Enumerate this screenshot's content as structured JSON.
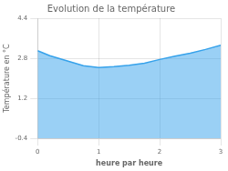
{
  "chart_data": {
    "type": "area",
    "title": "Evolution de la température",
    "x_label": "heure par heure",
    "y_label": "Température en °C",
    "x": [
      0,
      0.2,
      0.5,
      0.75,
      1.0,
      1.25,
      1.5,
      1.75,
      2.0,
      2.25,
      2.5,
      2.75,
      3.0
    ],
    "values": [
      3.1,
      2.9,
      2.68,
      2.5,
      2.43,
      2.46,
      2.52,
      2.6,
      2.75,
      2.88,
      3.0,
      3.15,
      3.32
    ],
    "xlim": [
      0,
      3
    ],
    "xticks": [
      0,
      1,
      2,
      3
    ],
    "ylim": [
      -0.4,
      4.4
    ],
    "yticks": [
      -0.4,
      1.2,
      2.8,
      4.4
    ],
    "grid": true
  }
}
